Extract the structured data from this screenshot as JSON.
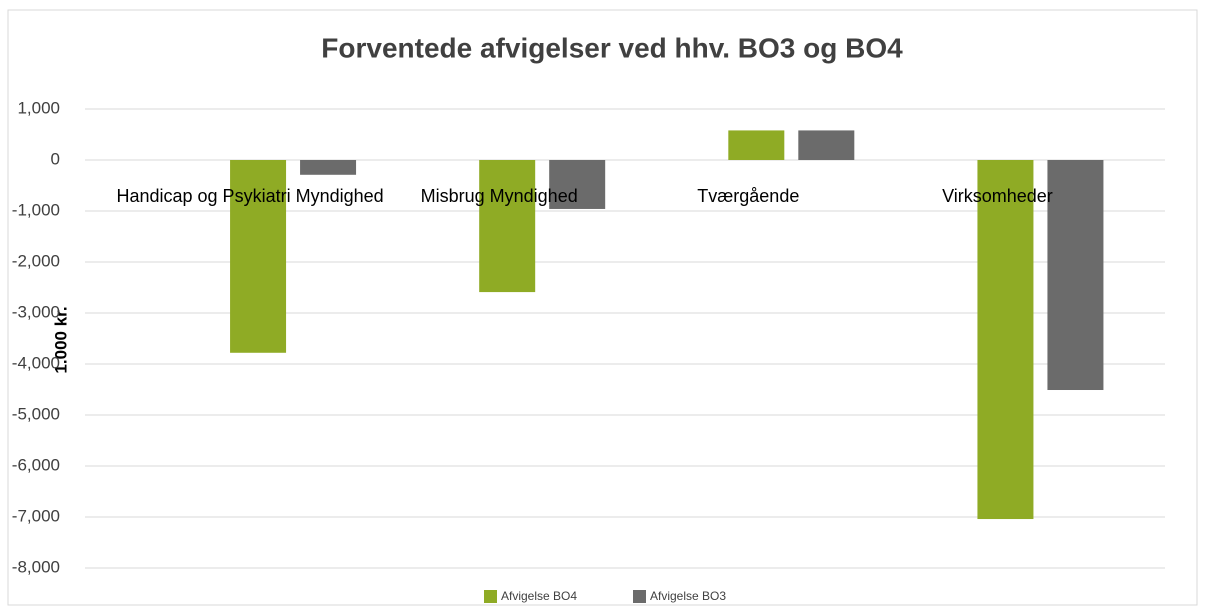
{
  "chart_data": {
    "type": "bar",
    "title": "Forventede afvigelser ved hhv. BO3 og BO4",
    "y_label": "1.000 kr.",
    "categories": [
      "Handicap og Psykiatri Myndighed",
      "Misbrug Myndighed",
      "Tværgående",
      "Virksomheder"
    ],
    "series": [
      {
        "name": "Afvigelse BO4",
        "color": "#8fab25",
        "values": [
          -3780,
          -2590,
          580,
          -7040
        ]
      },
      {
        "name": "Afvigelse BO3",
        "color": "#6b6b6b",
        "values": [
          -290,
          -960,
          580,
          -4510
        ]
      }
    ],
    "ylim": [
      -8000,
      1000
    ],
    "yticks": [
      {
        "value": 1000,
        "label": "1,000"
      },
      0,
      {
        "value": -1000,
        "label": "-1,000"
      },
      {
        "value": -2000,
        "label": "-2,000"
      },
      {
        "value": -3000,
        "label": "-3,000"
      },
      {
        "value": -4000,
        "label": "-4,000"
      },
      {
        "value": -5000,
        "label": "-5,000"
      },
      {
        "value": -6000,
        "label": "-6,000"
      },
      {
        "value": -7000,
        "label": "-7,000"
      },
      {
        "value": -8000,
        "label": "-8,000"
      }
    ],
    "grid": true,
    "legend": "bottom"
  }
}
